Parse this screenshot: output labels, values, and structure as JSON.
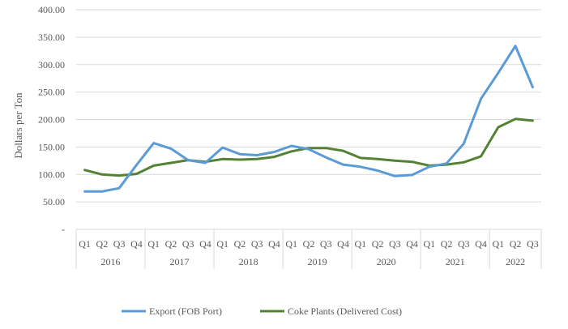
{
  "chart_data": {
    "type": "line",
    "title": "",
    "ylabel": "Dollars per Ton",
    "xlabel": "",
    "ylim": [
      0,
      400
    ],
    "y_tick_labels": [
      "-",
      "50.00",
      "100.00",
      "150.00",
      "200.00",
      "250.00",
      "300.00",
      "350.00",
      "400.00"
    ],
    "y_tick_values": [
      0,
      50,
      100,
      150,
      200,
      250,
      300,
      350,
      400
    ],
    "categories": [
      "Q1",
      "Q2",
      "Q3",
      "Q4",
      "Q1",
      "Q2",
      "Q3",
      "Q4",
      "Q1",
      "Q2",
      "Q3",
      "Q4",
      "Q1",
      "Q2",
      "Q3",
      "Q4",
      "Q1",
      "Q2",
      "Q3",
      "Q4",
      "Q1",
      "Q2",
      "Q3",
      "Q4",
      "Q1",
      "Q2",
      "Q3"
    ],
    "years": [
      {
        "label": "2016",
        "quarters": 4
      },
      {
        "label": "2017",
        "quarters": 4
      },
      {
        "label": "2018",
        "quarters": 4
      },
      {
        "label": "2019",
        "quarters": 4
      },
      {
        "label": "2020",
        "quarters": 4
      },
      {
        "label": "2021",
        "quarters": 4
      },
      {
        "label": "2022",
        "quarters": 3
      }
    ],
    "series": [
      {
        "name": "Export (FOB Port)",
        "color": "#5b9bd5",
        "values": [
          69,
          69,
          75,
          117,
          157,
          147,
          126,
          121,
          149,
          137,
          135,
          141,
          152,
          146,
          131,
          118,
          114,
          107,
          97,
          99,
          114,
          120,
          156,
          238,
          285,
          334,
          259
        ]
      },
      {
        "name": "Coke Plants (Delivered Cost)",
        "color": "#548235",
        "values": [
          108,
          100,
          98,
          101,
          116,
          121,
          126,
          123,
          128,
          127,
          128,
          132,
          142,
          148,
          148,
          143,
          130,
          128,
          125,
          123,
          116,
          118,
          122,
          133,
          186,
          201,
          198
        ]
      }
    ],
    "grid": true,
    "legend_position": "bottom"
  }
}
